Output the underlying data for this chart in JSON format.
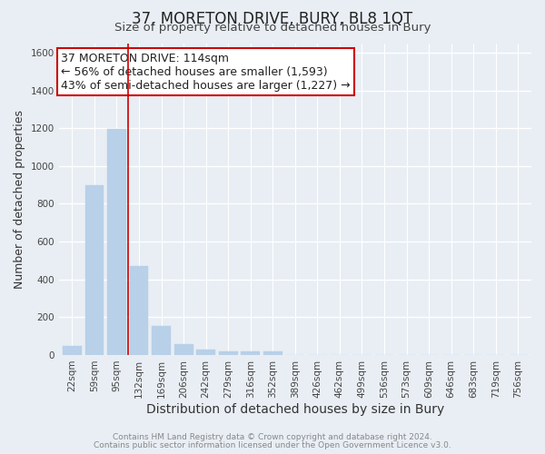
{
  "title": "37, MORETON DRIVE, BURY, BL8 1QT",
  "subtitle": "Size of property relative to detached houses in Bury",
  "xlabel": "Distribution of detached houses by size in Bury",
  "ylabel": "Number of detached properties",
  "footnote1": "Contains HM Land Registry data © Crown copyright and database right 2024.",
  "footnote2": "Contains public sector information licensed under the Open Government Licence v3.0.",
  "categories": [
    "22sqm",
    "59sqm",
    "95sqm",
    "132sqm",
    "169sqm",
    "206sqm",
    "242sqm",
    "279sqm",
    "316sqm",
    "352sqm",
    "389sqm",
    "426sqm",
    "462sqm",
    "499sqm",
    "536sqm",
    "573sqm",
    "609sqm",
    "646sqm",
    "683sqm",
    "719sqm",
    "756sqm"
  ],
  "values": [
    50,
    900,
    1195,
    470,
    155,
    58,
    28,
    20,
    20,
    18,
    0,
    0,
    0,
    0,
    0,
    0,
    0,
    0,
    0,
    0,
    0
  ],
  "bar_color": "#b8d0e8",
  "bar_edge_color": "#b8d0e8",
  "vline_x": 2.5,
  "vline_color": "#cc0000",
  "annotation_line1": "37 MORETON DRIVE: 114sqm",
  "annotation_line2": "← 56% of detached houses are smaller (1,593)",
  "annotation_line3": "43% of semi-detached houses are larger (1,227) →",
  "annotation_box_color": "#ffffff",
  "annotation_box_edge": "#cc0000",
  "ylim": [
    0,
    1650
  ],
  "yticks": [
    0,
    200,
    400,
    600,
    800,
    1000,
    1200,
    1400,
    1600
  ],
  "bg_color": "#e8eef4",
  "plot_bg_color": "#e8eef4",
  "grid_color": "#ffffff",
  "title_fontsize": 12,
  "subtitle_fontsize": 9.5,
  "xlabel_fontsize": 10,
  "ylabel_fontsize": 9,
  "tick_fontsize": 7.5,
  "annotation_fontsize": 9,
  "footnote_fontsize": 6.5
}
